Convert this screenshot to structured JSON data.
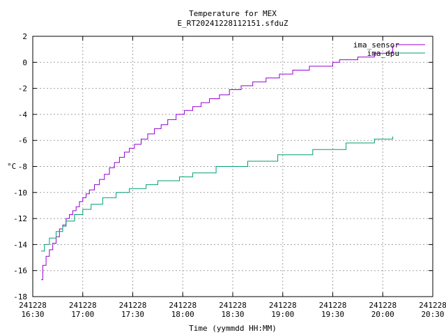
{
  "chart_data": {
    "type": "line",
    "title": "Temperature for MEX",
    "subtitle": "E_RT20241228112151.sfduZ",
    "xlabel": "Time (yymmdd HH:MM)",
    "ylabel": "°C",
    "xlim": [
      "2024-12-28T16:30",
      "2024-12-28T20:30"
    ],
    "ylim": [
      -18,
      2
    ],
    "grid": true,
    "legend_position": "top-right",
    "x_ticks": [
      {
        "line1": "241228",
        "line2": "16:30"
      },
      {
        "line1": "241228",
        "line2": "17:00"
      },
      {
        "line1": "241228",
        "line2": "17:30"
      },
      {
        "line1": "241228",
        "line2": "18:00"
      },
      {
        "line1": "241228",
        "line2": "18:30"
      },
      {
        "line1": "241228",
        "line2": "19:00"
      },
      {
        "line1": "241228",
        "line2": "19:30"
      },
      {
        "line1": "241228",
        "line2": "20:00"
      },
      {
        "line1": "241228",
        "line2": "20:30"
      }
    ],
    "y_ticks": [
      "-18",
      "-16",
      "-14",
      "-12",
      "-10",
      "-8",
      "-6",
      "-4",
      "-2",
      "0",
      "2"
    ],
    "series": [
      {
        "name": "ima_sensor",
        "color": "#9400d3",
        "points": [
          [
            "2024-12-28T16:35",
            -16.7
          ],
          [
            "2024-12-28T16:36",
            -15.6
          ],
          [
            "2024-12-28T16:38",
            -14.9
          ],
          [
            "2024-12-28T16:40",
            -14.4
          ],
          [
            "2024-12-28T16:42",
            -13.9
          ],
          [
            "2024-12-28T16:44",
            -13.4
          ],
          [
            "2024-12-28T16:46",
            -12.8
          ],
          [
            "2024-12-28T16:48",
            -12.5
          ],
          [
            "2024-12-28T16:50",
            -12.0
          ],
          [
            "2024-12-28T16:52",
            -11.7
          ],
          [
            "2024-12-28T16:54",
            -11.4
          ],
          [
            "2024-12-28T16:56",
            -11.1
          ],
          [
            "2024-12-28T16:58",
            -10.7
          ],
          [
            "2024-12-28T17:00",
            -10.4
          ],
          [
            "2024-12-28T17:02",
            -10.1
          ],
          [
            "2024-12-28T17:04",
            -9.8
          ],
          [
            "2024-12-28T17:07",
            -9.4
          ],
          [
            "2024-12-28T17:10",
            -9.0
          ],
          [
            "2024-12-28T17:13",
            -8.6
          ],
          [
            "2024-12-28T17:16",
            -8.1
          ],
          [
            "2024-12-28T17:19",
            -7.7
          ],
          [
            "2024-12-28T17:22",
            -7.3
          ],
          [
            "2024-12-28T17:25",
            -6.9
          ],
          [
            "2024-12-28T17:28",
            -6.6
          ],
          [
            "2024-12-28T17:31",
            -6.3
          ],
          [
            "2024-12-28T17:35",
            -5.9
          ],
          [
            "2024-12-28T17:39",
            -5.5
          ],
          [
            "2024-12-28T17:43",
            -5.1
          ],
          [
            "2024-12-28T17:47",
            -4.8
          ],
          [
            "2024-12-28T17:51",
            -4.4
          ],
          [
            "2024-12-28T17:56",
            -4.0
          ],
          [
            "2024-12-28T18:01",
            -3.7
          ],
          [
            "2024-12-28T18:06",
            -3.4
          ],
          [
            "2024-12-28T18:11",
            -3.1
          ],
          [
            "2024-12-28T18:16",
            -2.8
          ],
          [
            "2024-12-28T18:22",
            -2.5
          ],
          [
            "2024-12-28T18:28",
            -2.1
          ],
          [
            "2024-12-28T18:35",
            -1.8
          ],
          [
            "2024-12-28T18:42",
            -1.5
          ],
          [
            "2024-12-28T18:50",
            -1.2
          ],
          [
            "2024-12-28T18:58",
            -0.9
          ],
          [
            "2024-12-28T19:06",
            -0.6
          ],
          [
            "2024-12-28T19:16",
            -0.3
          ],
          [
            "2024-12-28T19:30",
            0.0
          ],
          [
            "2024-12-28T19:34",
            0.2
          ],
          [
            "2024-12-28T19:45",
            0.4
          ],
          [
            "2024-12-28T19:55",
            0.7
          ],
          [
            "2024-12-28T20:06",
            1.3
          ]
        ]
      },
      {
        "name": "ima_dpu",
        "color": "#009e73",
        "points": [
          [
            "2024-12-28T16:35",
            -14.5
          ],
          [
            "2024-12-28T16:37",
            -14.0
          ],
          [
            "2024-12-28T16:40",
            -13.5
          ],
          [
            "2024-12-28T16:44",
            -13.0
          ],
          [
            "2024-12-28T16:48",
            -12.6
          ],
          [
            "2024-12-28T16:50",
            -12.2
          ],
          [
            "2024-12-28T16:55",
            -11.7
          ],
          [
            "2024-12-28T17:00",
            -11.3
          ],
          [
            "2024-12-28T17:05",
            -10.9
          ],
          [
            "2024-12-28T17:12",
            -10.4
          ],
          [
            "2024-12-28T17:20",
            -10.0
          ],
          [
            "2024-12-28T17:28",
            -9.7
          ],
          [
            "2024-12-28T17:38",
            -9.4
          ],
          [
            "2024-12-28T17:45",
            -9.1
          ],
          [
            "2024-12-28T17:58",
            -8.8
          ],
          [
            "2024-12-28T18:06",
            -8.5
          ],
          [
            "2024-12-28T18:20",
            -8.0
          ],
          [
            "2024-12-28T18:39",
            -7.6
          ],
          [
            "2024-12-28T18:57",
            -7.1
          ],
          [
            "2024-12-28T19:18",
            -6.7
          ],
          [
            "2024-12-28T19:38",
            -6.2
          ],
          [
            "2024-12-28T19:55",
            -5.9
          ],
          [
            "2024-12-28T20:06",
            -5.7
          ]
        ]
      }
    ]
  }
}
